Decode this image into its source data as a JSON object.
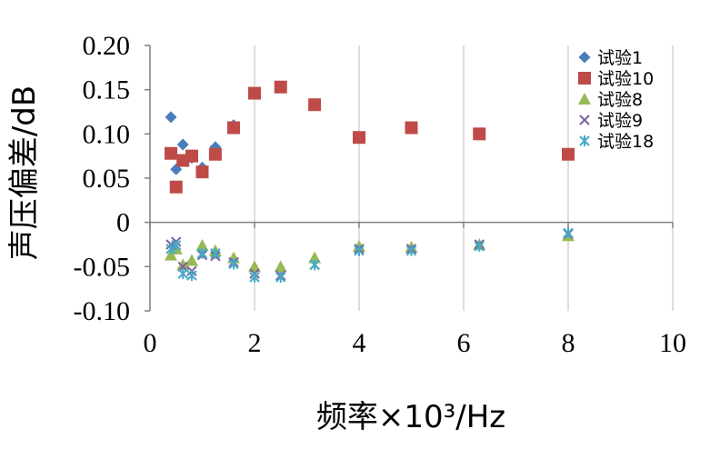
{
  "chart_data": {
    "type": "scatter",
    "xlabel": "频率×10³/Hz",
    "ylabel": "声压偏差/dB",
    "xlim": [
      0,
      10
    ],
    "ylim": [
      -0.1,
      0.2
    ],
    "x_ticks": [
      "0",
      "2",
      "4",
      "6",
      "8",
      "10"
    ],
    "y_ticks": [
      "0.20",
      "0.15",
      "0.10",
      "0.05",
      "0",
      "-0.05",
      "-0.10"
    ],
    "grid": "vertical",
    "legend_position": "top-right",
    "series": [
      {
        "name": "试验1",
        "marker": "diamond",
        "color": "#4a7ebb",
        "points": [
          [
            0.4,
            0.119
          ],
          [
            0.5,
            0.06
          ],
          [
            0.63,
            0.088
          ],
          [
            0.8,
            0.073
          ],
          [
            1.0,
            0.062
          ],
          [
            1.25,
            0.085
          ],
          [
            1.6,
            0.11
          ]
        ]
      },
      {
        "name": "试验10",
        "marker": "square",
        "color": "#be4b48",
        "points": [
          [
            0.4,
            0.078
          ],
          [
            0.5,
            0.04
          ],
          [
            0.63,
            0.07
          ],
          [
            0.8,
            0.075
          ],
          [
            1.0,
            0.057
          ],
          [
            1.25,
            0.077
          ],
          [
            1.6,
            0.107
          ],
          [
            2.0,
            0.146
          ],
          [
            2.5,
            0.153
          ],
          [
            3.15,
            0.133
          ],
          [
            4.0,
            0.096
          ],
          [
            5.0,
            0.107
          ],
          [
            6.3,
            0.1
          ],
          [
            8.0,
            0.077
          ]
        ]
      },
      {
        "name": "试验8",
        "marker": "triangle",
        "color": "#98b954",
        "points": [
          [
            0.4,
            -0.037
          ],
          [
            0.5,
            -0.03
          ],
          [
            0.63,
            -0.048
          ],
          [
            0.8,
            -0.043
          ],
          [
            1.0,
            -0.026
          ],
          [
            1.25,
            -0.032
          ],
          [
            1.6,
            -0.04
          ],
          [
            2.0,
            -0.05
          ],
          [
            2.5,
            -0.05
          ],
          [
            3.15,
            -0.04
          ],
          [
            4.0,
            -0.027
          ],
          [
            5.0,
            -0.028
          ],
          [
            6.3,
            -0.025
          ],
          [
            8.0,
            -0.015
          ]
        ]
      },
      {
        "name": "试验9",
        "marker": "x",
        "color": "#7d60a0",
        "points": [
          [
            0.4,
            -0.025
          ],
          [
            0.5,
            -0.022
          ],
          [
            0.63,
            -0.05
          ],
          [
            0.8,
            -0.055
          ],
          [
            1.0,
            -0.037
          ],
          [
            1.25,
            -0.038
          ],
          [
            1.6,
            -0.045
          ],
          [
            2.0,
            -0.058
          ],
          [
            2.5,
            -0.06
          ],
          [
            3.15,
            -0.048
          ],
          [
            4.0,
            -0.03
          ],
          [
            5.0,
            -0.03
          ],
          [
            6.3,
            -0.025
          ],
          [
            8.0,
            -0.013
          ]
        ]
      },
      {
        "name": "试验18",
        "marker": "asterisk",
        "color": "#46aac5",
        "points": [
          [
            0.4,
            -0.03
          ],
          [
            0.5,
            -0.026
          ],
          [
            0.63,
            -0.058
          ],
          [
            0.8,
            -0.06
          ],
          [
            1.0,
            -0.035
          ],
          [
            1.25,
            -0.035
          ],
          [
            1.6,
            -0.047
          ],
          [
            2.0,
            -0.062
          ],
          [
            2.5,
            -0.062
          ],
          [
            3.15,
            -0.048
          ],
          [
            4.0,
            -0.032
          ],
          [
            5.0,
            -0.032
          ],
          [
            6.3,
            -0.027
          ],
          [
            8.0,
            -0.012
          ]
        ]
      }
    ]
  }
}
